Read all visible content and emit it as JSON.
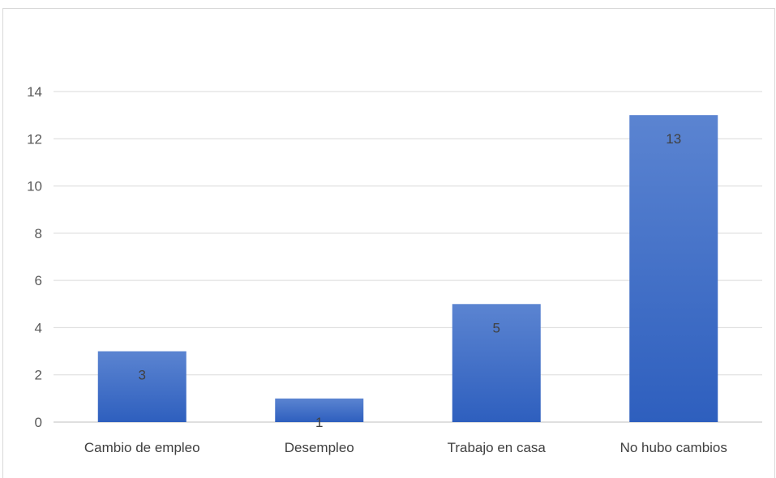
{
  "chart_data": {
    "type": "bar",
    "title": "",
    "xlabel": "",
    "ylabel": "",
    "categories": [
      "Cambio de empleo",
      "Desempleo",
      "Trabajo en casa",
      "No hubo cambios"
    ],
    "values": [
      3,
      1,
      5,
      13
    ],
    "data_labels": [
      "3",
      "1",
      "5",
      "13"
    ],
    "yticks": [
      "0",
      "2",
      "4",
      "6",
      "8",
      "10",
      "12",
      "14"
    ],
    "ylim": [
      0,
      14
    ],
    "grid": true,
    "legend": false,
    "colors": {
      "bar_top": "#5b84d1",
      "bar_bottom": "#2e5fbe",
      "grid": "#d9d9d9",
      "axis": "#bfbfbf"
    }
  }
}
